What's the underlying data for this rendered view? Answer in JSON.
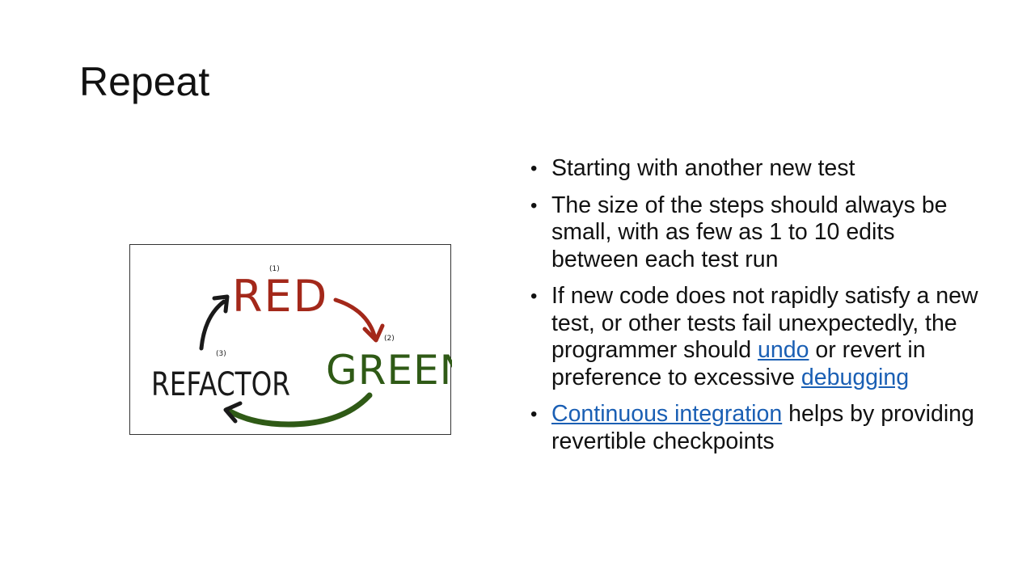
{
  "slide": {
    "title": "Repeat"
  },
  "diagram": {
    "step1_number": "(1)",
    "step1_label": "RED",
    "step2_number": "(2)",
    "step2_label": "GREEN",
    "step3_number": "(3)",
    "step3_label": "REFACTOR",
    "colors": {
      "red": "#a3281a",
      "green": "#2f5a16",
      "black": "#1a1a1a"
    }
  },
  "bullets": [
    {
      "text": "Starting with another new test"
    },
    {
      "text": "The size of the steps should always be small, with as few as 1 to 10 edits between each test run"
    },
    {
      "before": "If new code does not rapidly satisfy a new test, or other tests fail unexpectedly, the programmer should ",
      "link1": "undo",
      "middle": " or revert in preference to excessive ",
      "link2": "debugging"
    },
    {
      "link": "Continuous integration",
      "after": " helps by providing revertible checkpoints"
    }
  ],
  "link_color": "#1a5fb4"
}
